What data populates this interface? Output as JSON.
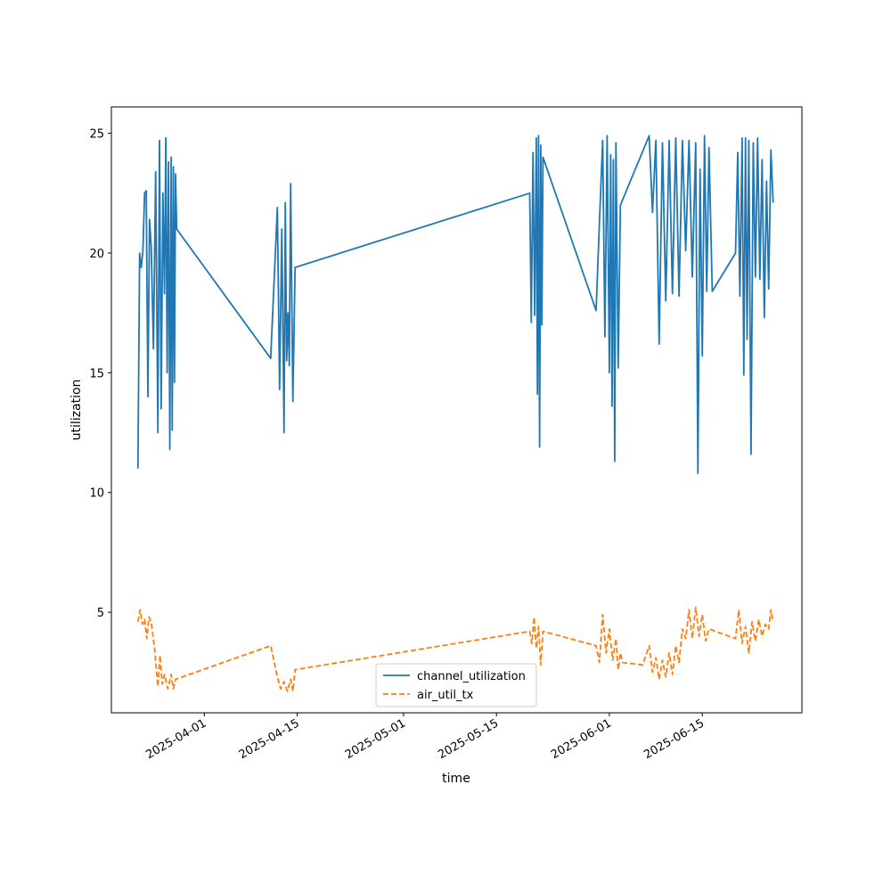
{
  "chart_data": {
    "type": "line",
    "xlabel": "time",
    "ylabel": "utilization",
    "x_type": "date",
    "xlim": [
      "2025-03-18",
      "2025-06-30"
    ],
    "ylim": [
      0.8,
      26.1
    ],
    "x_ticks": [
      "2025-04-01",
      "2025-04-15",
      "2025-05-01",
      "2025-05-15",
      "2025-06-01",
      "2025-06-15"
    ],
    "y_ticks": [
      5,
      10,
      15,
      20,
      25
    ],
    "grid": false,
    "legend_position": "lower-center",
    "series": [
      {
        "name": "channel_utilization",
        "color": "#1f77b4",
        "style": "solid",
        "points": [
          [
            "2025-03-22",
            11.0
          ],
          [
            "2025-03-22",
            20.0
          ],
          [
            "2025-03-22",
            19.4
          ],
          [
            "2025-03-22",
            20.1
          ],
          [
            "2025-03-23",
            22.5
          ],
          [
            "2025-03-23",
            22.6
          ],
          [
            "2025-03-23",
            14.0
          ],
          [
            "2025-03-23",
            21.4
          ],
          [
            "2025-03-24",
            20.3
          ],
          [
            "2025-03-24",
            16.0
          ],
          [
            "2025-03-24",
            23.4
          ],
          [
            "2025-03-25",
            12.5
          ],
          [
            "2025-03-25",
            24.7
          ],
          [
            "2025-03-25",
            13.5
          ],
          [
            "2025-03-25",
            22.5
          ],
          [
            "2025-03-26",
            18.3
          ],
          [
            "2025-03-26",
            24.8
          ],
          [
            "2025-03-26",
            15.0
          ],
          [
            "2025-03-26",
            23.8
          ],
          [
            "2025-03-26",
            11.8
          ],
          [
            "2025-03-27",
            24.0
          ],
          [
            "2025-03-27",
            12.6
          ],
          [
            "2025-03-27",
            23.6
          ],
          [
            "2025-03-27",
            14.6
          ],
          [
            "2025-03-27",
            23.3
          ],
          [
            "2025-03-27",
            21.0
          ],
          [
            "2025-04-11",
            15.6
          ],
          [
            "2025-04-12",
            21.9
          ],
          [
            "2025-04-12",
            14.3
          ],
          [
            "2025-04-12",
            21.0
          ],
          [
            "2025-04-13",
            12.5
          ],
          [
            "2025-04-13",
            22.1
          ],
          [
            "2025-04-13",
            15.5
          ],
          [
            "2025-04-13",
            17.5
          ],
          [
            "2025-04-13",
            15.3
          ],
          [
            "2025-04-14",
            22.9
          ],
          [
            "2025-04-14",
            13.8
          ],
          [
            "2025-04-14",
            19.4
          ],
          [
            "2025-05-20",
            22.5
          ],
          [
            "2025-05-20",
            17.1
          ],
          [
            "2025-05-20",
            24.2
          ],
          [
            "2025-05-20",
            17.4
          ],
          [
            "2025-05-21",
            24.8
          ],
          [
            "2025-05-21",
            14.1
          ],
          [
            "2025-05-21",
            24.9
          ],
          [
            "2025-05-21",
            11.9
          ],
          [
            "2025-05-21",
            24.5
          ],
          [
            "2025-05-21",
            17.0
          ],
          [
            "2025-05-22",
            24.0
          ],
          [
            "2025-05-30",
            17.6
          ],
          [
            "2025-05-30",
            21.2
          ],
          [
            "2025-05-31",
            24.7
          ],
          [
            "2025-05-31",
            16.5
          ],
          [
            "2025-05-31",
            24.9
          ],
          [
            "2025-06-01",
            15.0
          ],
          [
            "2025-06-01",
            24.1
          ],
          [
            "2025-06-01",
            13.6
          ],
          [
            "2025-06-01",
            23.9
          ],
          [
            "2025-06-01",
            11.3
          ],
          [
            "2025-06-02",
            24.6
          ],
          [
            "2025-06-02",
            15.2
          ],
          [
            "2025-06-02",
            22.0
          ],
          [
            "2025-06-07",
            24.9
          ],
          [
            "2025-06-07",
            21.7
          ],
          [
            "2025-06-08",
            24.7
          ],
          [
            "2025-06-08",
            16.2
          ],
          [
            "2025-06-09",
            24.6
          ],
          [
            "2025-06-09",
            18.0
          ],
          [
            "2025-06-10",
            24.7
          ],
          [
            "2025-06-10",
            18.3
          ],
          [
            "2025-06-11",
            24.8
          ],
          [
            "2025-06-11",
            18.2
          ],
          [
            "2025-06-12",
            24.7
          ],
          [
            "2025-06-12",
            20.1
          ],
          [
            "2025-06-13",
            24.7
          ],
          [
            "2025-06-13",
            19.0
          ],
          [
            "2025-06-14",
            24.6
          ],
          [
            "2025-06-14",
            10.8
          ],
          [
            "2025-06-14",
            23.5
          ],
          [
            "2025-06-15",
            15.7
          ],
          [
            "2025-06-15",
            24.9
          ],
          [
            "2025-06-15",
            18.4
          ],
          [
            "2025-06-16",
            24.4
          ],
          [
            "2025-06-16",
            18.4
          ],
          [
            "2025-06-20",
            20.0
          ],
          [
            "2025-06-20",
            24.2
          ],
          [
            "2025-06-20",
            18.2
          ],
          [
            "2025-06-21",
            24.8
          ],
          [
            "2025-06-21",
            14.9
          ],
          [
            "2025-06-21",
            24.8
          ],
          [
            "2025-06-21",
            16.4
          ],
          [
            "2025-06-22",
            24.7
          ],
          [
            "2025-06-22",
            11.6
          ],
          [
            "2025-06-22",
            24.6
          ],
          [
            "2025-06-23",
            19.0
          ],
          [
            "2025-06-23",
            24.8
          ],
          [
            "2025-06-23",
            18.9
          ],
          [
            "2025-06-24",
            23.9
          ],
          [
            "2025-06-24",
            17.3
          ],
          [
            "2025-06-24",
            23.0
          ],
          [
            "2025-06-25",
            18.5
          ],
          [
            "2025-06-25",
            24.3
          ],
          [
            "2025-06-25",
            22.1
          ]
        ]
      },
      {
        "name": "air_util_tx",
        "color": "#ff7f0e",
        "style": "dashed",
        "points": [
          [
            "2025-03-22",
            4.6
          ],
          [
            "2025-03-22",
            5.1
          ],
          [
            "2025-03-22",
            4.5
          ],
          [
            "2025-03-23",
            4.7
          ],
          [
            "2025-03-23",
            3.9
          ],
          [
            "2025-03-23",
            4.8
          ],
          [
            "2025-03-24",
            4.6
          ],
          [
            "2025-03-24",
            3.5
          ],
          [
            "2025-03-25",
            1.9
          ],
          [
            "2025-03-25",
            3.2
          ],
          [
            "2025-03-25",
            2.0
          ],
          [
            "2025-03-26",
            2.4
          ],
          [
            "2025-03-26",
            1.8
          ],
          [
            "2025-03-27",
            2.4
          ],
          [
            "2025-03-27",
            1.8
          ],
          [
            "2025-03-27",
            2.2
          ],
          [
            "2025-04-11",
            3.6
          ],
          [
            "2025-04-12",
            2.3
          ],
          [
            "2025-04-12",
            1.8
          ],
          [
            "2025-04-13",
            2.1
          ],
          [
            "2025-04-13",
            1.7
          ],
          [
            "2025-04-14",
            2.2
          ],
          [
            "2025-04-14",
            1.7
          ],
          [
            "2025-04-14",
            2.6
          ],
          [
            "2025-05-20",
            4.2
          ],
          [
            "2025-05-20",
            3.7
          ],
          [
            "2025-05-20",
            4.8
          ],
          [
            "2025-05-21",
            3.5
          ],
          [
            "2025-05-21",
            4.4
          ],
          [
            "2025-05-21",
            2.8
          ],
          [
            "2025-05-22",
            4.2
          ],
          [
            "2025-05-30",
            3.6
          ],
          [
            "2025-05-30",
            2.9
          ],
          [
            "2025-05-31",
            4.9
          ],
          [
            "2025-05-31",
            3.3
          ],
          [
            "2025-06-01",
            4.3
          ],
          [
            "2025-06-01",
            3.0
          ],
          [
            "2025-06-02",
            3.9
          ],
          [
            "2025-06-02",
            2.6
          ],
          [
            "2025-06-02",
            3.3
          ],
          [
            "2025-06-03",
            2.9
          ],
          [
            "2025-06-06",
            2.8
          ],
          [
            "2025-06-07",
            3.6
          ],
          [
            "2025-06-07",
            2.5
          ],
          [
            "2025-06-08",
            3.1
          ],
          [
            "2025-06-08",
            2.2
          ],
          [
            "2025-06-09",
            3.0
          ],
          [
            "2025-06-09",
            2.3
          ],
          [
            "2025-06-10",
            3.3
          ],
          [
            "2025-06-10",
            2.4
          ],
          [
            "2025-06-11",
            3.6
          ],
          [
            "2025-06-11",
            2.9
          ],
          [
            "2025-06-12",
            4.3
          ],
          [
            "2025-06-12",
            3.9
          ],
          [
            "2025-06-13",
            5.1
          ],
          [
            "2025-06-13",
            3.9
          ],
          [
            "2025-06-14",
            5.2
          ],
          [
            "2025-06-14",
            4.0
          ],
          [
            "2025-06-15",
            4.9
          ],
          [
            "2025-06-15",
            3.8
          ],
          [
            "2025-06-16",
            4.3
          ],
          [
            "2025-06-20",
            3.9
          ],
          [
            "2025-06-20",
            5.1
          ],
          [
            "2025-06-21",
            3.7
          ],
          [
            "2025-06-21",
            4.4
          ],
          [
            "2025-06-22",
            3.3
          ],
          [
            "2025-06-22",
            4.6
          ],
          [
            "2025-06-23",
            3.8
          ],
          [
            "2025-06-23",
            4.7
          ],
          [
            "2025-06-24",
            4.0
          ],
          [
            "2025-06-24",
            4.5
          ],
          [
            "2025-06-25",
            4.3
          ],
          [
            "2025-06-25",
            5.1
          ],
          [
            "2025-06-25",
            4.6
          ]
        ]
      }
    ]
  }
}
